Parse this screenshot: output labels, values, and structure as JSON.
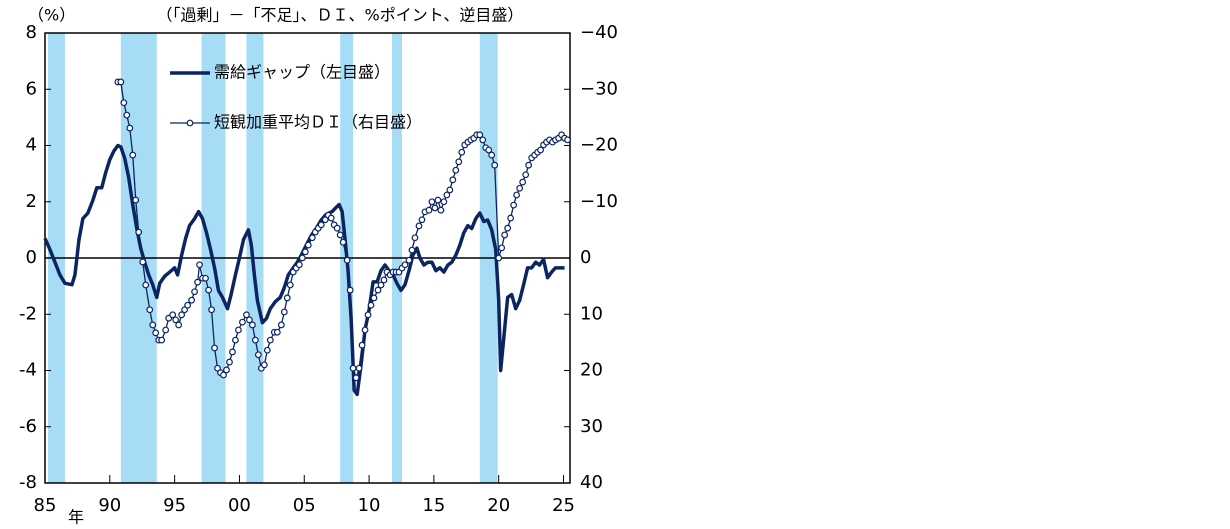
{
  "chart_data": {
    "type": "line",
    "ylabel": "（%）",
    "y2label": "（「過剰」－「不足」、ＤＩ、%ポイント、逆目盛）",
    "xlabel": "年",
    "xlim": [
      1985,
      2025.5
    ],
    "xticks": [
      {
        "value": 1985,
        "label": "85"
      },
      {
        "value": 1990,
        "label": "90"
      },
      {
        "value": 1995,
        "label": "95"
      },
      {
        "value": 2000,
        "label": "00"
      },
      {
        "value": 2005,
        "label": "05"
      },
      {
        "value": 2010,
        "label": "10"
      },
      {
        "value": 2015,
        "label": "15"
      },
      {
        "value": 2020,
        "label": "20"
      },
      {
        "value": 2025,
        "label": "25"
      }
    ],
    "ylim": [
      -8,
      8
    ],
    "yticks": [
      8,
      6,
      4,
      2,
      0,
      -2,
      -4,
      -6,
      -8
    ],
    "y2lim": [
      40,
      -40
    ],
    "y2ticks": [
      {
        "value": -40,
        "label": "−40"
      },
      {
        "value": -30,
        "label": "−30"
      },
      {
        "value": -20,
        "label": "−20"
      },
      {
        "value": -10,
        "label": "−10"
      },
      0,
      10,
      20,
      30,
      40
    ],
    "zero_line": true,
    "legend": "upper left",
    "shaded_color": "#a6dcf6",
    "shaded_periods": [
      [
        1985.23,
        1986.54
      ],
      [
        1990.85,
        1993.62
      ],
      [
        1997.08,
        1998.92
      ],
      [
        2000.54,
        2001.85
      ],
      [
        2007.77,
        2008.77
      ],
      [
        2011.77,
        2012.54
      ],
      [
        2018.54,
        2019.92
      ]
    ],
    "series": [
      {
        "name": "需給ギャップ（左目盛）",
        "color": "#0c2461",
        "axis": "y",
        "marker": false,
        "x": [
          1985.0,
          1985.38,
          1985.77,
          1986.15,
          1986.54,
          1987.08,
          1987.31,
          1987.62,
          1987.92,
          1988.31,
          1988.69,
          1989.0,
          1989.38,
          1989.69,
          1990.0,
          1990.31,
          1990.62,
          1990.85,
          1991.15,
          1991.46,
          1991.77,
          1992.08,
          1992.38,
          1992.69,
          1993.0,
          1993.31,
          1993.62,
          1993.85,
          1994.23,
          1994.62,
          1995.0,
          1995.23,
          1995.54,
          1995.85,
          1996.15,
          1996.54,
          1996.85,
          1997.15,
          1997.46,
          1997.77,
          1998.08,
          1998.38,
          1998.69,
          1999.08,
          1999.38,
          1999.69,
          2000.0,
          2000.31,
          2000.69,
          2000.92,
          2001.15,
          2001.38,
          2001.77,
          2002.08,
          2002.38,
          2002.77,
          2003.15,
          2003.46,
          2003.77,
          2004.15,
          2004.46,
          2004.77,
          2005.15,
          2005.54,
          2005.92,
          2006.31,
          2006.69,
          2007.15,
          2007.46,
          2007.69,
          2007.92,
          2008.15,
          2008.38,
          2008.62,
          2008.85,
          2009.08,
          2009.38,
          2009.69,
          2010.0,
          2010.31,
          2010.62,
          2010.92,
          2011.23,
          2011.54,
          2011.85,
          2012.15,
          2012.46,
          2012.77,
          2013.08,
          2013.38,
          2013.69,
          2013.92,
          2014.23,
          2014.54,
          2014.85,
          2015.15,
          2015.46,
          2015.77,
          2016.08,
          2016.38,
          2016.69,
          2017.0,
          2017.31,
          2017.62,
          2017.92,
          2018.23,
          2018.54,
          2018.85,
          2019.15,
          2019.46,
          2019.77,
          2020.0,
          2020.15,
          2020.38,
          2020.69,
          2021.0,
          2021.31,
          2021.62,
          2021.92,
          2022.23,
          2022.54,
          2022.85,
          2023.15,
          2023.46,
          2023.77,
          2024.08,
          2024.38,
          2024.77,
          2025.08
        ],
        "values": [
          0.7,
          0.3,
          -0.15,
          -0.6,
          -0.9,
          -0.95,
          -0.6,
          0.65,
          1.4,
          1.6,
          2.05,
          2.5,
          2.5,
          3.05,
          3.5,
          3.8,
          4.0,
          3.95,
          3.55,
          2.85,
          1.9,
          1.05,
          0.35,
          -0.15,
          -0.6,
          -0.95,
          -1.4,
          -0.9,
          -0.65,
          -0.5,
          -0.35,
          -0.6,
          0.1,
          0.7,
          1.15,
          1.4,
          1.65,
          1.4,
          0.9,
          0.3,
          -0.35,
          -1.15,
          -1.4,
          -1.8,
          -1.25,
          -0.6,
          0,
          0.65,
          1.0,
          0.45,
          -0.6,
          -1.5,
          -2.3,
          -2.15,
          -1.8,
          -1.55,
          -1.4,
          -1.05,
          -0.6,
          -0.35,
          -0.15,
          0.1,
          0.45,
          0.8,
          1.05,
          1.35,
          1.55,
          1.65,
          1.8,
          1.9,
          1.65,
          0.65,
          -0.45,
          -2.2,
          -4.7,
          -4.85,
          -3.8,
          -2.55,
          -1.85,
          -0.85,
          -0.85,
          -0.45,
          -0.25,
          -0.45,
          -0.6,
          -0.9,
          -1.15,
          -0.95,
          -0.45,
          0.1,
          0.35,
          0,
          -0.25,
          -0.15,
          -0.15,
          -0.45,
          -0.35,
          -0.5,
          -0.25,
          -0.15,
          0.1,
          0.45,
          0.9,
          1.15,
          1.05,
          1.4,
          1.6,
          1.3,
          1.35,
          1.0,
          0.3,
          -1.5,
          -4.0,
          -2.9,
          -1.4,
          -1.3,
          -1.8,
          -1.5,
          -0.95,
          -0.35,
          -0.35,
          -0.15,
          -0.25,
          -0.05,
          -0.7,
          -0.5,
          -0.35,
          -0.35,
          -0.35
        ]
      },
      {
        "name": "短観加重平均ＤＩ（右目盛）",
        "color": "#0c2461",
        "axis": "y2",
        "marker": true,
        "x": [
          1990.62,
          1990.85,
          1991.08,
          1991.31,
          1991.54,
          1991.77,
          1992.0,
          1992.23,
          1992.54,
          1992.77,
          1993.08,
          1993.31,
          1993.54,
          1993.77,
          1994.0,
          1994.31,
          1994.54,
          1994.85,
          1995.08,
          1995.31,
          1995.54,
          1995.77,
          1996.0,
          1996.31,
          1996.54,
          1996.77,
          1996.92,
          1997.15,
          1997.38,
          1997.62,
          1997.85,
          1998.08,
          1998.31,
          1998.54,
          1998.77,
          1999.0,
          1999.23,
          1999.46,
          1999.69,
          1999.92,
          2000.23,
          2000.54,
          2000.77,
          2001.0,
          2001.23,
          2001.46,
          2001.69,
          2001.92,
          2002.15,
          2002.38,
          2002.69,
          2002.92,
          2003.23,
          2003.46,
          2003.69,
          2003.92,
          2004.15,
          2004.38,
          2004.62,
          2004.85,
          2005.08,
          2005.31,
          2005.62,
          2005.85,
          2006.08,
          2006.31,
          2006.62,
          2006.85,
          2007.08,
          2007.31,
          2007.54,
          2007.77,
          2008.0,
          2008.31,
          2008.54,
          2008.77,
          2009.0,
          2009.23,
          2009.46,
          2009.69,
          2009.92,
          2010.15,
          2010.38,
          2010.69,
          2010.92,
          2011.15,
          2011.38,
          2011.62,
          2011.85,
          2012.08,
          2012.31,
          2012.54,
          2012.77,
          2013.08,
          2013.31,
          2013.54,
          2013.85,
          2014.08,
          2014.31,
          2014.62,
          2014.85,
          2015.08,
          2015.31,
          2015.54,
          2015.77,
          2016.0,
          2016.23,
          2016.46,
          2016.69,
          2016.92,
          2017.15,
          2017.38,
          2017.62,
          2017.85,
          2018.08,
          2018.31,
          2018.54,
          2018.77,
          2019.0,
          2019.23,
          2019.46,
          2019.69,
          2020.0,
          2020.23,
          2020.46,
          2020.69,
          2020.92,
          2021.15,
          2021.38,
          2021.62,
          2021.85,
          2022.08,
          2022.31,
          2022.54,
          2022.77,
          2023.0,
          2023.23,
          2023.46,
          2023.69,
          2023.92,
          2024.15,
          2024.38,
          2024.62,
          2024.85,
          2025.08,
          2025.31
        ],
        "values": [
          -31.3,
          -31.3,
          -27.6,
          -25.4,
          -23.1,
          -18.3,
          -10.3,
          -4.6,
          0.7,
          4.8,
          9.2,
          11.9,
          13.3,
          14.6,
          14.6,
          12.8,
          10.7,
          10.1,
          11.0,
          11.9,
          10.1,
          9.2,
          8.4,
          7.5,
          6.0,
          4.3,
          1.2,
          3.6,
          3.6,
          5.7,
          9.2,
          16.0,
          19.6,
          20.4,
          20.8,
          19.9,
          18.5,
          16.7,
          14.6,
          12.8,
          11.4,
          10.1,
          11.0,
          11.9,
          14.6,
          17.2,
          19.6,
          19.0,
          16.4,
          14.6,
          13.2,
          13.2,
          11.9,
          9.6,
          7.1,
          4.8,
          2.5,
          1.8,
          1.2,
          0,
          -1.1,
          -2.3,
          -3.6,
          -4.6,
          -5.3,
          -5.9,
          -6.8,
          -7.6,
          -7.1,
          -5.9,
          -5.3,
          -4.1,
          -2.8,
          0.4,
          5.7,
          19.6,
          21.3,
          19.6,
          15.5,
          12.8,
          10.1,
          8.4,
          7.1,
          5.7,
          4.8,
          3.9,
          2.5,
          3.0,
          2.5,
          2.5,
          2.5,
          1.8,
          1.2,
          0.4,
          -1.4,
          -3.6,
          -5.7,
          -6.8,
          -8.2,
          -8.5,
          -10.0,
          -8.9,
          -10.3,
          -8.5,
          -10.0,
          -11.2,
          -12.1,
          -13.9,
          -15.6,
          -17.1,
          -18.8,
          -20.1,
          -20.6,
          -21.0,
          -21.3,
          -21.9,
          -21.9,
          -21.0,
          -19.6,
          -19.2,
          -18.3,
          -16.5,
          0,
          -1.8,
          -4.1,
          -5.3,
          -7.1,
          -9.4,
          -11.2,
          -12.4,
          -13.5,
          -14.8,
          -16.5,
          -17.8,
          -18.3,
          -18.8,
          -19.2,
          -20.1,
          -20.6,
          -21.0,
          -20.6,
          -21.0,
          -21.3,
          -21.9,
          -21.3,
          -21.0
        ]
      }
    ]
  }
}
